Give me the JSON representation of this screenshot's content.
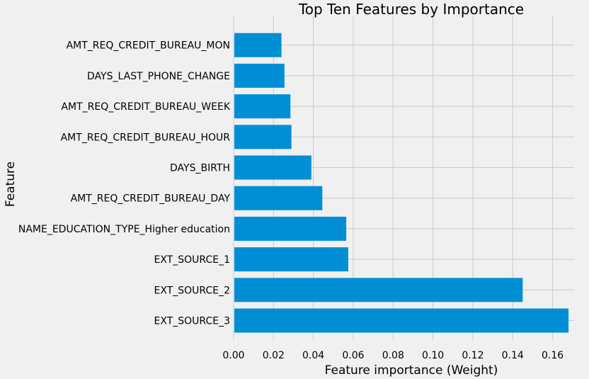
{
  "chart_data": {
    "type": "bar",
    "orientation": "horizontal",
    "title": "Top Ten Features by Importance",
    "xlabel": "Feature importance (Weight)",
    "ylabel": "Feature",
    "categories": [
      "EXT_SOURCE_3",
      "EXT_SOURCE_2",
      "EXT_SOURCE_1",
      "NAME_EDUCATION_TYPE_Higher education",
      "AMT_REQ_CREDIT_BUREAU_DAY",
      "DAYS_BIRTH",
      "AMT_REQ_CREDIT_BUREAU_HOUR",
      "AMT_REQ_CREDIT_BUREAU_WEEK",
      "DAYS_LAST_PHONE_CHANGE",
      "AMT_REQ_CREDIT_BUREAU_MON"
    ],
    "values": [
      0.168,
      0.145,
      0.0575,
      0.0565,
      0.0445,
      0.039,
      0.029,
      0.0285,
      0.0255,
      0.024
    ],
    "xlim": [
      0,
      0.17
    ],
    "xticks": [
      "0.00",
      "0.02",
      "0.04",
      "0.06",
      "0.08",
      "0.10",
      "0.12",
      "0.14",
      "0.16"
    ],
    "grid": true,
    "bar_color": "#008fd5",
    "background_color": "#f0f0f0",
    "grid_color": "#cbcbcb"
  }
}
